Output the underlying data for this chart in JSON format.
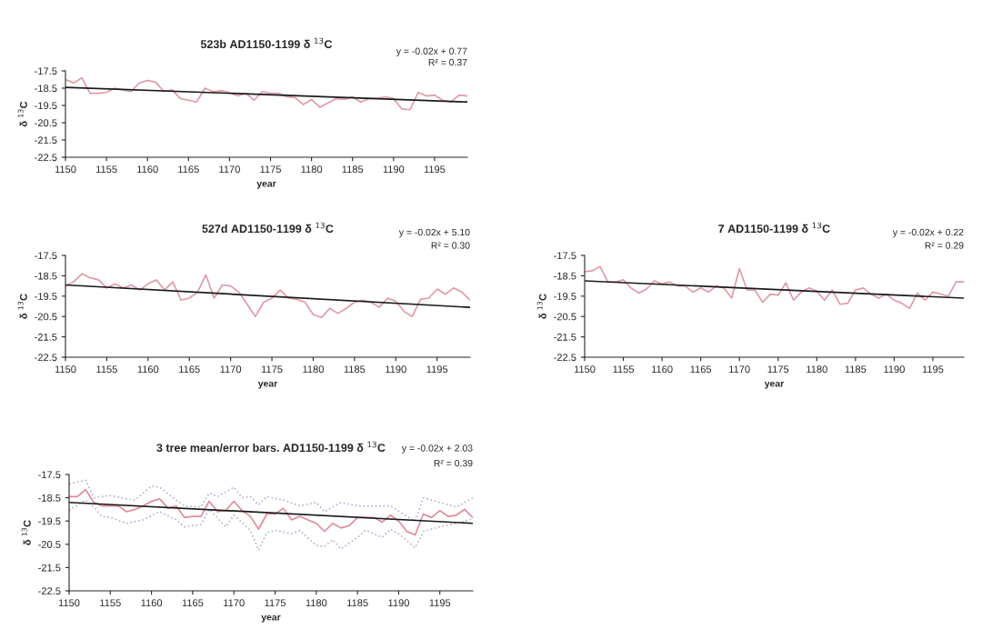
{
  "chart_data": [
    {
      "type": "line",
      "title": "523b AD1150-1199 δ $^{13}$C",
      "xlabel": "year",
      "ylabel": "δ $^{13}$C",
      "annotations": [
        "y = -0.02x + 0.77",
        "R² = 0.37"
      ],
      "x": [
        1150,
        1151,
        1152,
        1153,
        1154,
        1155,
        1156,
        1157,
        1158,
        1159,
        1160,
        1161,
        1162,
        1163,
        1164,
        1165,
        1166,
        1167,
        1168,
        1169,
        1170,
        1171,
        1172,
        1173,
        1174,
        1175,
        1176,
        1177,
        1178,
        1179,
        1180,
        1181,
        1182,
        1183,
        1184,
        1185,
        1186,
        1187,
        1188,
        1189,
        1190,
        1191,
        1192,
        1193,
        1194,
        1195,
        1196,
        1197,
        1198,
        1199
      ],
      "series": [
        {
          "color": "#e09aa6",
          "values": [
            -18.0,
            -18.2,
            -17.9,
            -18.8,
            -18.8,
            -18.75,
            -18.5,
            -18.6,
            -18.7,
            -18.2,
            -18.05,
            -18.15,
            -18.7,
            -18.6,
            -19.1,
            -19.2,
            -19.3,
            -18.5,
            -18.7,
            -18.65,
            -18.75,
            -18.95,
            -18.8,
            -19.2,
            -18.7,
            -18.8,
            -18.8,
            -19.0,
            -19.05,
            -19.45,
            -19.15,
            -19.6,
            -19.35,
            -19.1,
            -19.15,
            -19.0,
            -19.3,
            -19.1,
            -19.1,
            -19.0,
            -19.1,
            -19.7,
            -19.75,
            -18.75,
            -18.95,
            -18.9,
            -19.2,
            -19.3,
            -18.9,
            -18.95
          ]
        },
        {
          "color": "#1a1a1a",
          "x": [
            1150,
            1199
          ],
          "values": [
            -18.45,
            -19.3
          ]
        }
      ],
      "xlim": [
        1150,
        1199
      ],
      "xticks": [
        1150,
        1155,
        1160,
        1165,
        1170,
        1175,
        1180,
        1185,
        1190,
        1195
      ],
      "ylim": [
        -22.5,
        -17.5
      ],
      "yticks": [
        -22.5,
        -21.5,
        -20.5,
        -19.5,
        -18.5,
        -17.5
      ]
    },
    {
      "type": "line",
      "title": "527d AD1150-1199 δ $^{13}$C",
      "xlabel": "year",
      "ylabel": "δ $^{13}$C",
      "annotations": [
        "y = -0.02x + 5.10",
        "R² = 0.30"
      ],
      "x": [
        1150,
        1151,
        1152,
        1153,
        1154,
        1155,
        1156,
        1157,
        1158,
        1159,
        1160,
        1161,
        1162,
        1163,
        1164,
        1165,
        1166,
        1167,
        1168,
        1169,
        1170,
        1171,
        1172,
        1173,
        1174,
        1175,
        1176,
        1177,
        1178,
        1179,
        1180,
        1181,
        1182,
        1183,
        1184,
        1185,
        1186,
        1187,
        1188,
        1189,
        1190,
        1191,
        1192,
        1193,
        1194,
        1195,
        1196,
        1197,
        1198,
        1199
      ],
      "series": [
        {
          "color": "#e09aa6",
          "values": [
            -19.0,
            -18.8,
            -18.4,
            -18.6,
            -18.7,
            -19.1,
            -18.9,
            -19.1,
            -18.95,
            -19.2,
            -18.9,
            -18.7,
            -19.2,
            -18.8,
            -19.7,
            -19.6,
            -19.3,
            -18.45,
            -19.6,
            -18.95,
            -19.0,
            -19.3,
            -19.9,
            -20.5,
            -19.8,
            -19.6,
            -19.2,
            -19.6,
            -19.65,
            -19.8,
            -20.4,
            -20.55,
            -20.1,
            -20.35,
            -20.1,
            -19.8,
            -19.7,
            -19.8,
            -20.05,
            -19.6,
            -19.75,
            -20.25,
            -20.5,
            -19.65,
            -19.6,
            -19.15,
            -19.4,
            -19.1,
            -19.3,
            -19.7
          ]
        },
        {
          "color": "#1a1a1a",
          "x": [
            1150,
            1199
          ],
          "values": [
            -18.95,
            -20.05
          ]
        }
      ],
      "xlim": [
        1150,
        1199
      ],
      "xticks": [
        1150,
        1155,
        1160,
        1165,
        1170,
        1175,
        1180,
        1185,
        1190,
        1195
      ],
      "ylim": [
        -22.5,
        -17.5
      ],
      "yticks": [
        -22.5,
        -21.5,
        -20.5,
        -19.5,
        -18.5,
        -17.5
      ]
    },
    {
      "type": "line",
      "title": "7 AD1150-1199 δ $^{13}$C",
      "xlabel": "year",
      "ylabel": "δ $^{13}$C",
      "annotations": [
        "y = -0.02x + 0.22",
        "R² = 0.29"
      ],
      "x": [
        1150,
        1151,
        1152,
        1153,
        1154,
        1155,
        1156,
        1157,
        1158,
        1159,
        1160,
        1161,
        1162,
        1163,
        1164,
        1165,
        1166,
        1167,
        1168,
        1169,
        1170,
        1171,
        1172,
        1173,
        1174,
        1175,
        1176,
        1177,
        1178,
        1179,
        1180,
        1181,
        1182,
        1183,
        1184,
        1185,
        1186,
        1187,
        1188,
        1189,
        1190,
        1191,
        1192,
        1193,
        1194,
        1195,
        1196,
        1197,
        1198,
        1199
      ],
      "series": [
        {
          "color": "#e09aa6",
          "values": [
            -18.3,
            -18.25,
            -18.05,
            -18.8,
            -18.8,
            -18.7,
            -19.1,
            -19.35,
            -19.15,
            -18.75,
            -18.9,
            -18.8,
            -19.0,
            -19.0,
            -19.3,
            -19.1,
            -19.3,
            -19.0,
            -19.1,
            -19.6,
            -18.15,
            -19.2,
            -19.2,
            -19.8,
            -19.4,
            -19.45,
            -18.85,
            -19.7,
            -19.3,
            -19.1,
            -19.25,
            -19.7,
            -19.2,
            -19.9,
            -19.85,
            -19.2,
            -19.1,
            -19.4,
            -19.6,
            -19.4,
            -19.7,
            -19.85,
            -20.1,
            -19.35,
            -19.7,
            -19.3,
            -19.4,
            -19.5,
            -18.8,
            -18.8
          ]
        },
        {
          "color": "#1a1a1a",
          "x": [
            1150,
            1199
          ],
          "values": [
            -18.75,
            -19.6
          ]
        }
      ],
      "xlim": [
        1150,
        1199
      ],
      "xticks": [
        1150,
        1155,
        1160,
        1165,
        1170,
        1175,
        1180,
        1185,
        1190,
        1195
      ],
      "ylim": [
        -22.5,
        -17.5
      ],
      "yticks": [
        -22.5,
        -21.5,
        -20.5,
        -19.5,
        -18.5,
        -17.5
      ]
    },
    {
      "type": "line",
      "title": "3 tree mean/error bars. AD1150-1199 δ $^{13}$C",
      "xlabel": "year",
      "ylabel": "δ $^{13}$C",
      "annotations": [
        "y = -0.02x + 2.03",
        "R² = 0.39"
      ],
      "x": [
        1150,
        1151,
        1152,
        1153,
        1154,
        1155,
        1156,
        1157,
        1158,
        1159,
        1160,
        1161,
        1162,
        1163,
        1164,
        1165,
        1166,
        1167,
        1168,
        1169,
        1170,
        1171,
        1172,
        1173,
        1174,
        1175,
        1176,
        1177,
        1178,
        1179,
        1180,
        1181,
        1182,
        1183,
        1184,
        1185,
        1186,
        1187,
        1188,
        1189,
        1190,
        1191,
        1192,
        1193,
        1194,
        1195,
        1196,
        1197,
        1198,
        1199
      ],
      "series": [
        {
          "color": "#a9b6cf",
          "line_style": "dotted",
          "x": [
            1150,
            1152,
            1153,
            1155,
            1157,
            1158,
            1160,
            1161,
            1163,
            1164,
            1166,
            1167,
            1168,
            1170,
            1171,
            1172,
            1173,
            1174,
            1176,
            1178,
            1180,
            1181,
            1183,
            1185,
            1189,
            1191,
            1192,
            1193,
            1195,
            1197,
            1199
          ],
          "values": [
            -17.9,
            -17.75,
            -18.5,
            -18.4,
            -18.55,
            -18.6,
            -18.0,
            -18.05,
            -18.6,
            -18.85,
            -18.9,
            -18.3,
            -18.45,
            -18.05,
            -18.5,
            -18.45,
            -18.8,
            -18.45,
            -18.6,
            -18.85,
            -18.7,
            -19.1,
            -18.7,
            -18.85,
            -18.85,
            -19.3,
            -19.5,
            -18.5,
            -18.7,
            -18.9,
            -18.5
          ]
        },
        {
          "color": "#a9b6cf",
          "line_style": "dotted",
          "x": [
            1150,
            1152,
            1153,
            1154,
            1155,
            1157,
            1159,
            1161,
            1163,
            1164,
            1166,
            1167,
            1169,
            1170,
            1172,
            1173,
            1174,
            1175,
            1177,
            1178,
            1180,
            1181,
            1182,
            1183,
            1185,
            1186,
            1188,
            1189,
            1190,
            1192,
            1193,
            1195,
            1197,
            1199
          ],
          "values": [
            -19.05,
            -18.6,
            -18.9,
            -19.3,
            -19.35,
            -19.6,
            -19.45,
            -19.1,
            -19.45,
            -19.75,
            -19.65,
            -19.0,
            -19.75,
            -19.25,
            -19.9,
            -20.75,
            -20.0,
            -19.9,
            -20.05,
            -19.9,
            -20.55,
            -20.6,
            -20.3,
            -20.7,
            -20.2,
            -19.9,
            -20.2,
            -19.85,
            -20.05,
            -20.65,
            -19.95,
            -19.75,
            -19.6,
            -19.4
          ]
        },
        {
          "color": "#e08a98",
          "values": [
            -18.45,
            -18.45,
            -18.15,
            -18.7,
            -18.85,
            -18.85,
            -18.85,
            -19.1,
            -19.0,
            -18.85,
            -18.65,
            -18.55,
            -18.95,
            -18.85,
            -19.35,
            -19.3,
            -19.3,
            -18.65,
            -19.1,
            -19.05,
            -18.65,
            -19.05,
            -19.3,
            -19.85,
            -19.2,
            -19.2,
            -18.95,
            -19.45,
            -19.3,
            -19.45,
            -19.6,
            -19.95,
            -19.6,
            -19.8,
            -19.7,
            -19.35,
            -19.35,
            -19.35,
            -19.55,
            -19.25,
            -19.5,
            -19.95,
            -20.1,
            -19.2,
            -19.35,
            -19.05,
            -19.3,
            -19.25,
            -19.0,
            -19.35
          ]
        },
        {
          "color": "#1a1a1a",
          "x": [
            1150,
            1199
          ],
          "values": [
            -18.7,
            -19.6
          ]
        }
      ],
      "xlim": [
        1150,
        1199
      ],
      "xticks": [
        1150,
        1155,
        1160,
        1165,
        1170,
        1175,
        1180,
        1185,
        1190,
        1195
      ],
      "ylim": [
        -22.5,
        -17.5
      ],
      "yticks": [
        -22.5,
        -21.5,
        -20.5,
        -19.5,
        -18.5,
        -17.5
      ]
    }
  ]
}
